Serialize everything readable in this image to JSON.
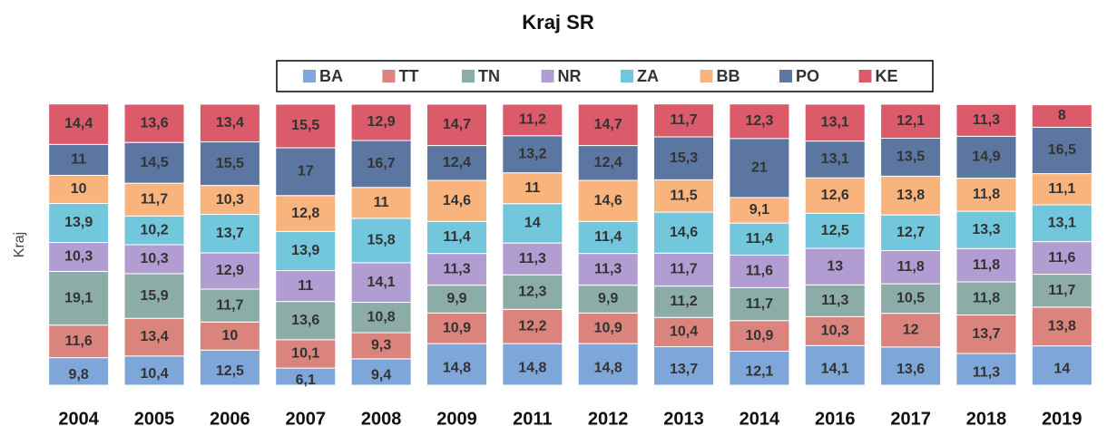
{
  "chart_data": {
    "type": "stacked_bar",
    "title": "Kraj SR",
    "y_label": "Kraj",
    "categories": [
      "2004",
      "2005",
      "2006",
      "2007",
      "2008",
      "2009",
      "2011",
      "2012",
      "2013",
      "2014",
      "2016",
      "2017",
      "2018",
      "2019"
    ],
    "ylim": [
      0,
      100
    ],
    "series": [
      {
        "name": "BA",
        "color": "#7ea6d8",
        "values": [
          9.8,
          10.4,
          12.5,
          6.1,
          9.4,
          14.8,
          14.8,
          14.8,
          13.7,
          12.1,
          14.1,
          13.6,
          11.3,
          14
        ],
        "value_labels": [
          "9,8",
          "10,4",
          "12,5",
          "6,1",
          "9,4",
          "14,8",
          "14,8",
          "14,8",
          "13,7",
          "12,1",
          "14,1",
          "13,6",
          "11,3",
          "14"
        ]
      },
      {
        "name": "TT",
        "color": "#db847e",
        "values": [
          11.6,
          13.4,
          10,
          10.1,
          9.3,
          10.9,
          12.2,
          10.9,
          10.4,
          10.9,
          10.3,
          12,
          13.7,
          13.8
        ],
        "value_labels": [
          "11,6",
          "13,4",
          "10",
          "10,1",
          "9,3",
          "10,9",
          "12,2",
          "10,9",
          "10,4",
          "10,9",
          "10,3",
          "12",
          "13,7",
          "13,8"
        ]
      },
      {
        "name": "TN",
        "color": "#8cada7",
        "values": [
          19.1,
          15.9,
          11.7,
          13.6,
          10.8,
          9.9,
          12.3,
          9.9,
          11.2,
          11.7,
          11.3,
          10.5,
          11.8,
          11.7
        ],
        "value_labels": [
          "19,1",
          "15,9",
          "11,7",
          "13,6",
          "10,8",
          "9,9",
          "12,3",
          "9,9",
          "11,2",
          "11,7",
          "11,3",
          "10,5",
          "11,8",
          "11,7"
        ]
      },
      {
        "name": "NR",
        "color": "#b19dd1",
        "values": [
          10.3,
          10.3,
          12.9,
          11,
          14.1,
          11.3,
          11.3,
          11.3,
          11.7,
          11.6,
          13,
          11.8,
          11.8,
          11.6
        ],
        "value_labels": [
          "10,3",
          "10,3",
          "12,9",
          "11",
          "14,1",
          "11,3",
          "11,3",
          "11,3",
          "11,7",
          "11,6",
          "13",
          "11,8",
          "11,8",
          "11,6"
        ]
      },
      {
        "name": "ZA",
        "color": "#72c7dd",
        "values": [
          13.9,
          10.2,
          13.7,
          13.9,
          15.8,
          11.4,
          14,
          11.4,
          14.6,
          11.4,
          12.5,
          12.7,
          13.3,
          13.1
        ],
        "value_labels": [
          "13,9",
          "10,2",
          "13,7",
          "13,9",
          "15,8",
          "11,4",
          "14",
          "11,4",
          "14,6",
          "11,4",
          "12,5",
          "12,7",
          "13,3",
          "13,1"
        ]
      },
      {
        "name": "BB",
        "color": "#f9b47e",
        "values": [
          10,
          11.7,
          10.3,
          12.8,
          11,
          14.6,
          11,
          14.6,
          11.5,
          9.1,
          12.6,
          13.8,
          11.8,
          11.1
        ],
        "value_labels": [
          "10",
          "11,7",
          "10,3",
          "12,8",
          "11",
          "14,6",
          "11",
          "14,6",
          "11,5",
          "9,1",
          "12,6",
          "13,8",
          "11,8",
          "11,1"
        ]
      },
      {
        "name": "PO",
        "color": "#5b76a1",
        "values": [
          11,
          14.5,
          15.5,
          17,
          16.7,
          12.4,
          13.2,
          12.4,
          15.3,
          21,
          13.1,
          13.5,
          14.9,
          16.5
        ],
        "value_labels": [
          "11",
          "14,5",
          "15,5",
          "17",
          "16,7",
          "12,4",
          "13,2",
          "12,4",
          "15,3",
          "21",
          "13,1",
          "13,5",
          "14,9",
          "16,5"
        ]
      },
      {
        "name": "KE",
        "color": "#db5b6b",
        "values": [
          14.4,
          13.6,
          13.4,
          15.5,
          12.9,
          14.7,
          11.2,
          14.7,
          11.7,
          12.3,
          13.1,
          12.1,
          11.3,
          8
        ],
        "value_labels": [
          "14,4",
          "13,6",
          "13,4",
          "15,5",
          "12,9",
          "14,7",
          "11,2",
          "14,7",
          "11,7",
          "12,3",
          "13,1",
          "12,1",
          "11,3",
          "8"
        ]
      }
    ]
  }
}
